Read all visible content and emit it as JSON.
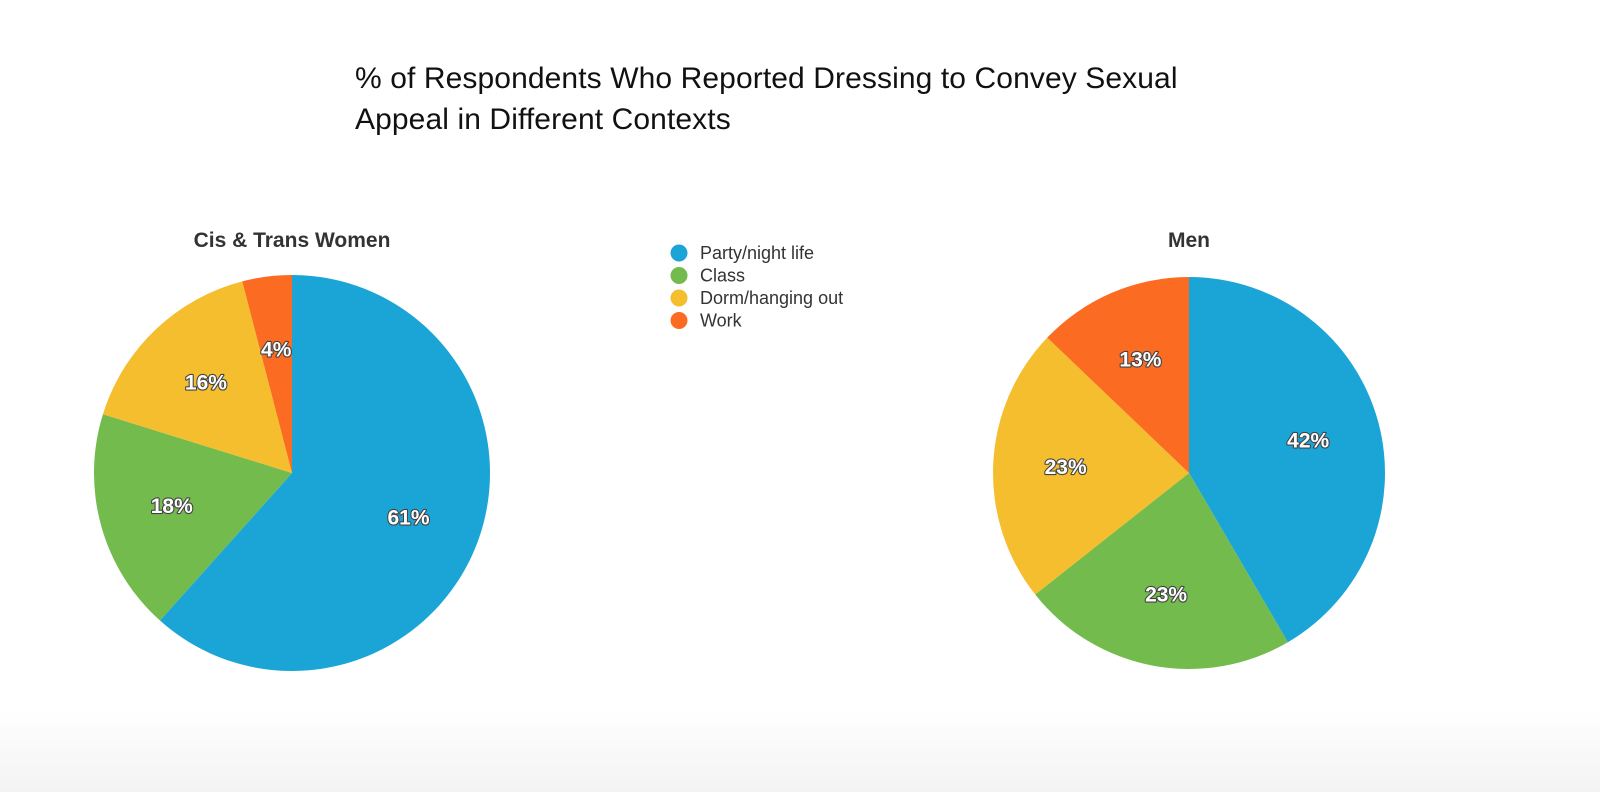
{
  "chart_data": {
    "type": "pie",
    "title": "% of Respondents Who Reported Dressing to Convey Sexual Appeal in Different Contexts",
    "title_line_1": "% of Respondents Who Reported Dressing to Convey Sexual",
    "title_line_2": "Appeal in Different Contexts",
    "legend": {
      "placement": "top-center",
      "entries": [
        "Party/night life",
        "Class",
        "Dorm/hanging out",
        "Work"
      ]
    },
    "colors": {
      "Party/night life": "#1ba5d7",
      "Class": "#72bb4c",
      "Dorm/hanging out": "#f4be2e",
      "Work": "#fb6b21"
    },
    "categories": [
      "Party/night life",
      "Class",
      "Dorm/hanging out",
      "Work"
    ],
    "pies": [
      {
        "name": "Cis & Trans Women",
        "values": [
          61,
          18,
          16,
          4
        ],
        "labels": [
          "61%",
          "18%",
          "16%",
          "4%"
        ]
      },
      {
        "name": "Men",
        "values": [
          42,
          23,
          23,
          13
        ],
        "labels": [
          "42%",
          "23%",
          "23%",
          "13%"
        ]
      }
    ]
  }
}
